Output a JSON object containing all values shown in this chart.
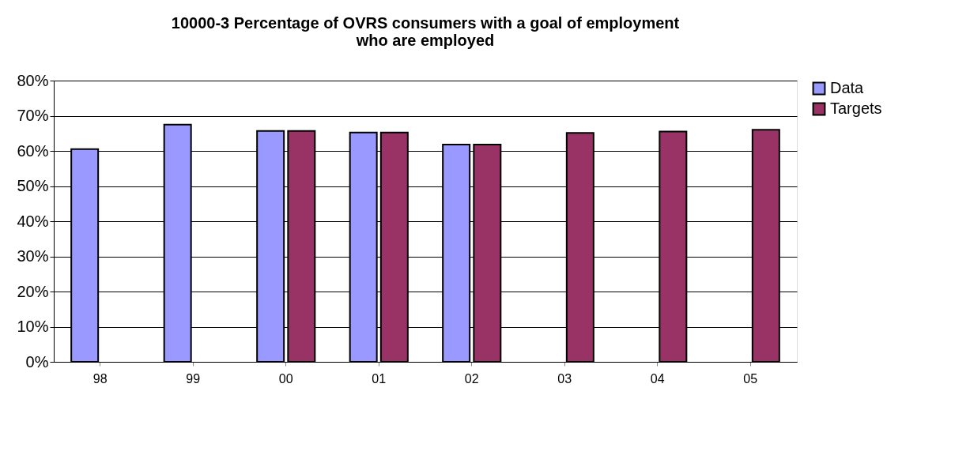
{
  "chart_data": {
    "type": "bar",
    "title": "10000-3  Percentage of OVRS consumers with a goal of employment\nwho are employed",
    "categories": [
      "98",
      "99",
      "00",
      "01",
      "02",
      "03",
      "04",
      "05"
    ],
    "series": [
      {
        "name": "Data",
        "color": "#9999ff",
        "values": [
          60.5,
          67.5,
          65.7,
          65.2,
          61.8,
          null,
          null,
          null
        ]
      },
      {
        "name": "Targets",
        "color": "#993366",
        "values": [
          null,
          null,
          65.7,
          65.2,
          61.8,
          65.1,
          65.5,
          66.0
        ]
      }
    ],
    "ylim": [
      0,
      80
    ],
    "yticks": [
      {
        "value": 0,
        "label": "0%"
      },
      {
        "value": 10,
        "label": "10%"
      },
      {
        "value": 20,
        "label": "20%"
      },
      {
        "value": 30,
        "label": "30%"
      },
      {
        "value": 40,
        "label": "40%"
      },
      {
        "value": 50,
        "label": "50%"
      },
      {
        "value": 60,
        "label": "60%"
      },
      {
        "value": 70,
        "label": "70%"
      },
      {
        "value": 80,
        "label": "80%"
      }
    ],
    "grid": "y",
    "legend": "right"
  }
}
